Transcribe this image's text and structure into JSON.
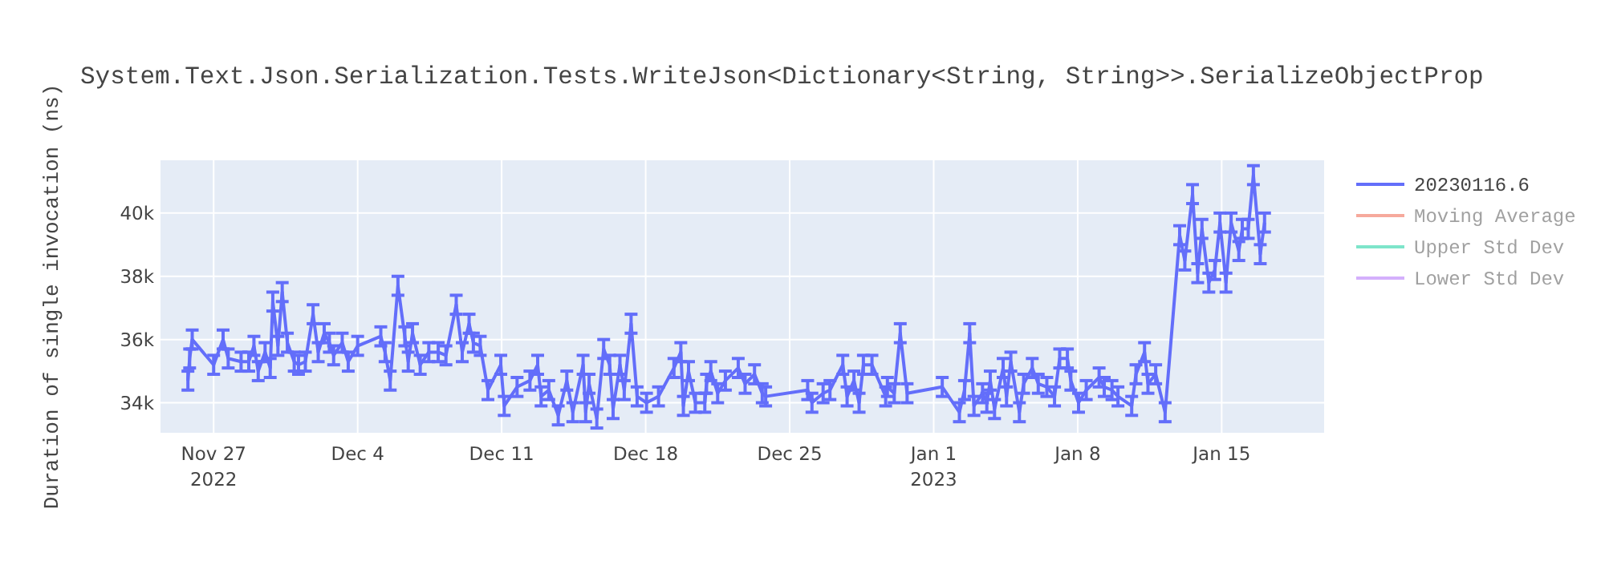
{
  "chart_data": {
    "type": "line",
    "title": "System.Text.Json.Serialization.Tests.WriteJson<Dictionary<String, String>>.SerializeObjectProp",
    "ylabel": "Duration of single invocation (ns)",
    "x": [
      "2022-11-25T18:00",
      "2022-11-25T20:00",
      "2022-11-25T23:00",
      "2022-11-27T00:00",
      "2022-11-27T11:00",
      "2022-11-27T17:00",
      "2022-11-28T08:00",
      "2022-11-28T17:00",
      "2022-11-28T23:00",
      "2022-11-29T04:00",
      "2022-11-29T12:00",
      "2022-11-29T18:00",
      "2022-11-29T21:00",
      "2022-11-30T03:00",
      "2022-11-30T08:00",
      "2022-11-30T14:00",
      "2022-11-30T22:00",
      "2022-12-01T03:00",
      "2022-12-01T11:00",
      "2022-12-01T20:00",
      "2022-12-02T02:00",
      "2022-12-02T09:00",
      "2022-12-02T15:00",
      "2022-12-02T20:00",
      "2022-12-03T06:00",
      "2022-12-03T13:00",
      "2022-12-04T00:00",
      "2022-12-05T03:00",
      "2022-12-05T08:00",
      "2022-12-05T14:00",
      "2022-12-05T23:00",
      "2022-12-06T07:00",
      "2022-12-06T11:00",
      "2022-12-06T16:00",
      "2022-12-07T01:00",
      "2022-12-07T11:00",
      "2022-12-07T22:00",
      "2022-12-08T07:00",
      "2022-12-08T19:00",
      "2022-12-09T02:00",
      "2022-12-09T10:00",
      "2022-12-09T15:00",
      "2022-12-09T23:00",
      "2022-12-10T08:00",
      "2022-12-10T23:00",
      "2022-12-11T03:00",
      "2022-12-11T18:00",
      "2022-12-12T09:00",
      "2022-12-12T18:00",
      "2022-12-12T22:00",
      "2022-12-13T07:00",
      "2022-12-13T18:00",
      "2022-12-14T04:00",
      "2022-12-14T11:00",
      "2022-12-14T23:00",
      "2022-12-15T02:00",
      "2022-12-15T06:00",
      "2022-12-15T15:00",
      "2022-12-15T23:00",
      "2022-12-16T06:00",
      "2022-12-16T10:00",
      "2022-12-16T18:00",
      "2022-12-16T23:00",
      "2022-12-17T07:00",
      "2022-12-17T14:00",
      "2022-12-18T01:00",
      "2022-12-18T15:00",
      "2022-12-19T09:00",
      "2022-12-19T17:00",
      "2022-12-19T20:00",
      "2022-12-20T02:00",
      "2022-12-20T10:00",
      "2022-12-20T21:00",
      "2022-12-20T23:00",
      "2022-12-21T04:00",
      "2022-12-21T12:00",
      "2022-12-21T21:00",
      "2022-12-22T12:00",
      "2022-12-22T20:00",
      "2022-12-23T07:00",
      "2022-12-23T16:00",
      "2022-12-23T20:00",
      "2022-12-25T21:00",
      "2022-12-26T02:00",
      "2022-12-26T15:00",
      "2022-12-26T23:00",
      "2022-12-27T14:00",
      "2022-12-27T19:00",
      "2022-12-28T03:00",
      "2022-12-28T09:00",
      "2022-12-28T14:00",
      "2022-12-29T00:00",
      "2022-12-29T16:00",
      "2022-12-29T18:00",
      "2022-12-30T02:00",
      "2022-12-30T09:00",
      "2022-12-30T17:00",
      "2023-01-01T10:00",
      "2023-01-02T06:00",
      "2023-01-02T12:00",
      "2023-01-02T18:00",
      "2023-01-02T23:00",
      "2023-01-03T09:00",
      "2023-01-03T14:00",
      "2023-01-03T18:00",
      "2023-01-03T23:00",
      "2023-01-04T09:00",
      "2023-01-04T13:00",
      "2023-01-04T18:00",
      "2023-01-05T04:00",
      "2023-01-05T09:00",
      "2023-01-05T19:00",
      "2023-01-06T02:00",
      "2023-01-06T12:00",
      "2023-01-06T21:00",
      "2023-01-07T03:00",
      "2023-01-07T12:00",
      "2023-01-07T16:00",
      "2023-01-08T01:00",
      "2023-01-08T10:00",
      "2023-01-09T01:00",
      "2023-01-09T07:00",
      "2023-01-09T16:00",
      "2023-01-09T23:00",
      "2023-01-10T15:00",
      "2023-01-10T20:00",
      "2023-01-11T06:00",
      "2023-01-11T10:00",
      "2023-01-11T19:00",
      "2023-01-12T06:00",
      "2023-01-12T23:00",
      "2023-01-13T05:00",
      "2023-01-13T14:00",
      "2023-01-13T20:00",
      "2023-01-14T01:00",
      "2023-01-14T09:00",
      "2023-01-14T16:00",
      "2023-01-14T22:00",
      "2023-01-15T05:00",
      "2023-01-15T11:00",
      "2023-01-15T20:00",
      "2023-01-16T00:00",
      "2023-01-16T07:00",
      "2023-01-16T13:00",
      "2023-01-16T21:00",
      "2023-01-17T02:00"
    ],
    "series": [
      {
        "name": "20230116.6",
        "color": "#636efa",
        "values": [
          34700,
          35400,
          36000,
          35200,
          36000,
          35400,
          35300,
          35300,
          35800,
          35000,
          35600,
          35100,
          37200,
          35800,
          37500,
          35900,
          35300,
          35200,
          35300,
          36800,
          35600,
          36200,
          35900,
          35500,
          35900,
          35300,
          35800,
          36100,
          35600,
          34700,
          37700,
          36100,
          35300,
          36200,
          35200,
          35600,
          35600,
          35500,
          37100,
          35600,
          36500,
          35900,
          35800,
          34400,
          35200,
          33900,
          34500,
          34700,
          35200,
          34200,
          34400,
          33600,
          34700,
          33700,
          35200,
          33700,
          34600,
          33500,
          35700,
          35200,
          33800,
          35200,
          34400,
          36500,
          34200,
          34000,
          34200,
          35100,
          35600,
          33900,
          35000,
          34000,
          34000,
          34600,
          35000,
          34300,
          34700,
          35100,
          34600,
          34900,
          34300,
          34200,
          34400,
          34000,
          34300,
          34400,
          35200,
          34200,
          34700,
          34000,
          35200,
          35200,
          34200,
          34500,
          34300,
          36200,
          34300,
          34500,
          33700,
          34400,
          36200,
          33900,
          34300,
          34000,
          34700,
          33800,
          35100,
          34200,
          35300,
          33700,
          34600,
          35100,
          34600,
          34500,
          34200,
          35400,
          35400,
          34700,
          34000,
          34400,
          34800,
          34500,
          34400,
          34200,
          33900,
          34900,
          35600,
          34600,
          34900,
          33700,
          39300,
          38500,
          40600,
          38100,
          39500,
          37800,
          38200,
          39700,
          37800,
          39700,
          38800,
          39500,
          39500,
          41200,
          38700,
          39700
        ],
        "errors": [
          300,
          300,
          300,
          300,
          300,
          300,
          300,
          300,
          300,
          300,
          300,
          300,
          300,
          300,
          300,
          300,
          300,
          300,
          300,
          300,
          300,
          300,
          300,
          300,
          300,
          300,
          300,
          300,
          300,
          300,
          300,
          300,
          300,
          300,
          300,
          300,
          300,
          300,
          300,
          300,
          300,
          300,
          300,
          300,
          300,
          300,
          300,
          300,
          300,
          300,
          300,
          300,
          300,
          300,
          300,
          300,
          300,
          300,
          300,
          300,
          300,
          300,
          300,
          300,
          300,
          300,
          300,
          300,
          300,
          300,
          300,
          300,
          300,
          300,
          300,
          300,
          300,
          300,
          300,
          300,
          300,
          300,
          300,
          300,
          300,
          300,
          300,
          300,
          300,
          300,
          300,
          300,
          300,
          300,
          300,
          300,
          300,
          300,
          300,
          300,
          300,
          300,
          300,
          300,
          300,
          300,
          300,
          300,
          300,
          300,
          300,
          300,
          300,
          300,
          300,
          300,
          300,
          300,
          300,
          300,
          300,
          300,
          300,
          300,
          300,
          300,
          300,
          300,
          300,
          300,
          300,
          300,
          300,
          300,
          300,
          300,
          300,
          300,
          300,
          300,
          300,
          300,
          300,
          300,
          300,
          300
        ]
      },
      {
        "name": "Moving Average",
        "color": "#ef553b",
        "values": [
          null,
          null,
          null,
          null,
          null,
          null,
          null,
          null,
          null,
          null,
          null,
          null,
          null,
          null,
          null,
          null,
          null,
          null,
          null,
          null,
          null,
          null,
          null,
          null,
          null,
          null,
          null,
          null,
          null,
          null,
          null,
          null,
          null,
          null,
          null,
          null,
          null,
          null,
          null,
          null,
          null,
          null,
          null,
          null,
          null,
          null,
          null,
          null,
          null,
          null,
          null,
          null,
          null,
          null,
          null,
          null,
          null,
          null,
          null,
          null,
          null,
          null,
          null,
          null,
          null,
          null,
          null,
          null,
          null,
          null,
          null,
          null,
          null,
          null,
          null,
          null,
          null,
          null,
          null,
          null,
          null,
          null,
          null,
          null,
          null,
          null,
          null,
          null,
          null,
          null,
          null,
          null,
          null,
          null,
          null,
          null,
          null,
          null,
          null,
          null,
          null,
          null,
          null,
          null,
          null,
          null,
          null,
          null,
          null,
          null,
          null,
          null,
          null,
          null,
          null,
          null,
          null,
          null,
          null,
          null,
          null,
          null,
          null,
          null,
          null,
          null,
          null,
          null,
          null,
          null,
          null,
          null,
          null,
          null,
          null,
          null,
          null,
          null,
          null,
          null,
          null,
          null,
          null,
          null,
          null,
          null
        ]
      },
      {
        "name": "Upper Std Dev",
        "color": "#00cc96",
        "values": [
          null,
          null,
          null,
          null,
          null,
          null,
          null,
          null,
          null,
          null,
          null,
          null,
          null,
          null,
          null,
          null,
          null,
          null,
          null,
          null,
          null,
          null,
          null,
          null,
          null,
          null,
          null,
          null,
          null,
          null,
          null,
          null,
          null,
          null,
          null,
          null,
          null,
          null,
          null,
          null,
          null,
          null,
          null,
          null,
          null,
          null,
          null,
          null,
          null,
          null,
          null,
          null,
          null,
          null,
          null,
          null,
          null,
          null,
          null,
          null,
          null,
          null,
          null,
          null,
          null,
          null,
          null,
          null,
          null,
          null,
          null,
          null,
          null,
          null,
          null,
          null,
          null,
          null,
          null,
          null,
          null,
          null,
          null,
          null,
          null,
          null,
          null,
          null,
          null,
          null,
          null,
          null,
          null,
          null,
          null,
          null,
          null,
          null,
          null,
          null,
          null,
          null,
          null,
          null,
          null,
          null,
          null,
          null,
          null,
          null,
          null,
          null,
          null,
          null,
          null,
          null,
          null,
          null,
          null,
          null,
          null,
          null,
          null,
          null,
          null,
          null,
          null,
          null,
          null,
          null,
          null,
          null,
          null,
          null,
          null,
          null,
          null,
          null,
          null,
          null,
          null,
          null,
          null,
          null,
          null,
          null
        ]
      },
      {
        "name": "Lower Std Dev",
        "color": "#ab63fa",
        "values": [
          null,
          null,
          null,
          null,
          null,
          null,
          null,
          null,
          null,
          null,
          null,
          null,
          null,
          null,
          null,
          null,
          null,
          null,
          null,
          null,
          null,
          null,
          null,
          null,
          null,
          null,
          null,
          null,
          null,
          null,
          null,
          null,
          null,
          null,
          null,
          null,
          null,
          null,
          null,
          null,
          null,
          null,
          null,
          null,
          null,
          null,
          null,
          null,
          null,
          null,
          null,
          null,
          null,
          null,
          null,
          null,
          null,
          null,
          null,
          null,
          null,
          null,
          null,
          null,
          null,
          null,
          null,
          null,
          null,
          null,
          null,
          null,
          null,
          null,
          null,
          null,
          null,
          null,
          null,
          null,
          null,
          null,
          null,
          null,
          null,
          null,
          null,
          null,
          null,
          null,
          null,
          null,
          null,
          null,
          null,
          null,
          null,
          null,
          null,
          null,
          null,
          null,
          null,
          null,
          null,
          null,
          null,
          null,
          null,
          null,
          null,
          null,
          null,
          null,
          null,
          null,
          null,
          null,
          null,
          null,
          null,
          null,
          null,
          null,
          null,
          null,
          null,
          null,
          null,
          null,
          null,
          null,
          null,
          null,
          null,
          null,
          null,
          null,
          null,
          null,
          null,
          null,
          null,
          null,
          null,
          null
        ]
      }
    ],
    "xlim": [
      "2022-11-24T10:00",
      "2023-01-19T23:30"
    ],
    "xticks": [
      {
        "value": "2022-11-27",
        "label": "Nov 27\n2022"
      },
      {
        "value": "2022-12-04",
        "label": "Dec 4"
      },
      {
        "value": "2022-12-11",
        "label": "Dec 11"
      },
      {
        "value": "2022-12-18",
        "label": "Dec 18"
      },
      {
        "value": "2022-12-25",
        "label": "Dec 25"
      },
      {
        "value": "2023-01-01",
        "label": "Jan 1\n2023"
      },
      {
        "value": "2023-01-08",
        "label": "Jan 8"
      },
      {
        "value": "2023-01-15",
        "label": "Jan 15"
      }
    ],
    "ylim": [
      33050,
      41670
    ],
    "yticks": [
      {
        "value": 34000,
        "label": "34k"
      },
      {
        "value": 36000,
        "label": "36k"
      },
      {
        "value": 38000,
        "label": "38k"
      },
      {
        "value": 40000,
        "label": "40k"
      }
    ],
    "grid": true,
    "legend": "top right",
    "marker": "none",
    "line_style": "solid"
  }
}
